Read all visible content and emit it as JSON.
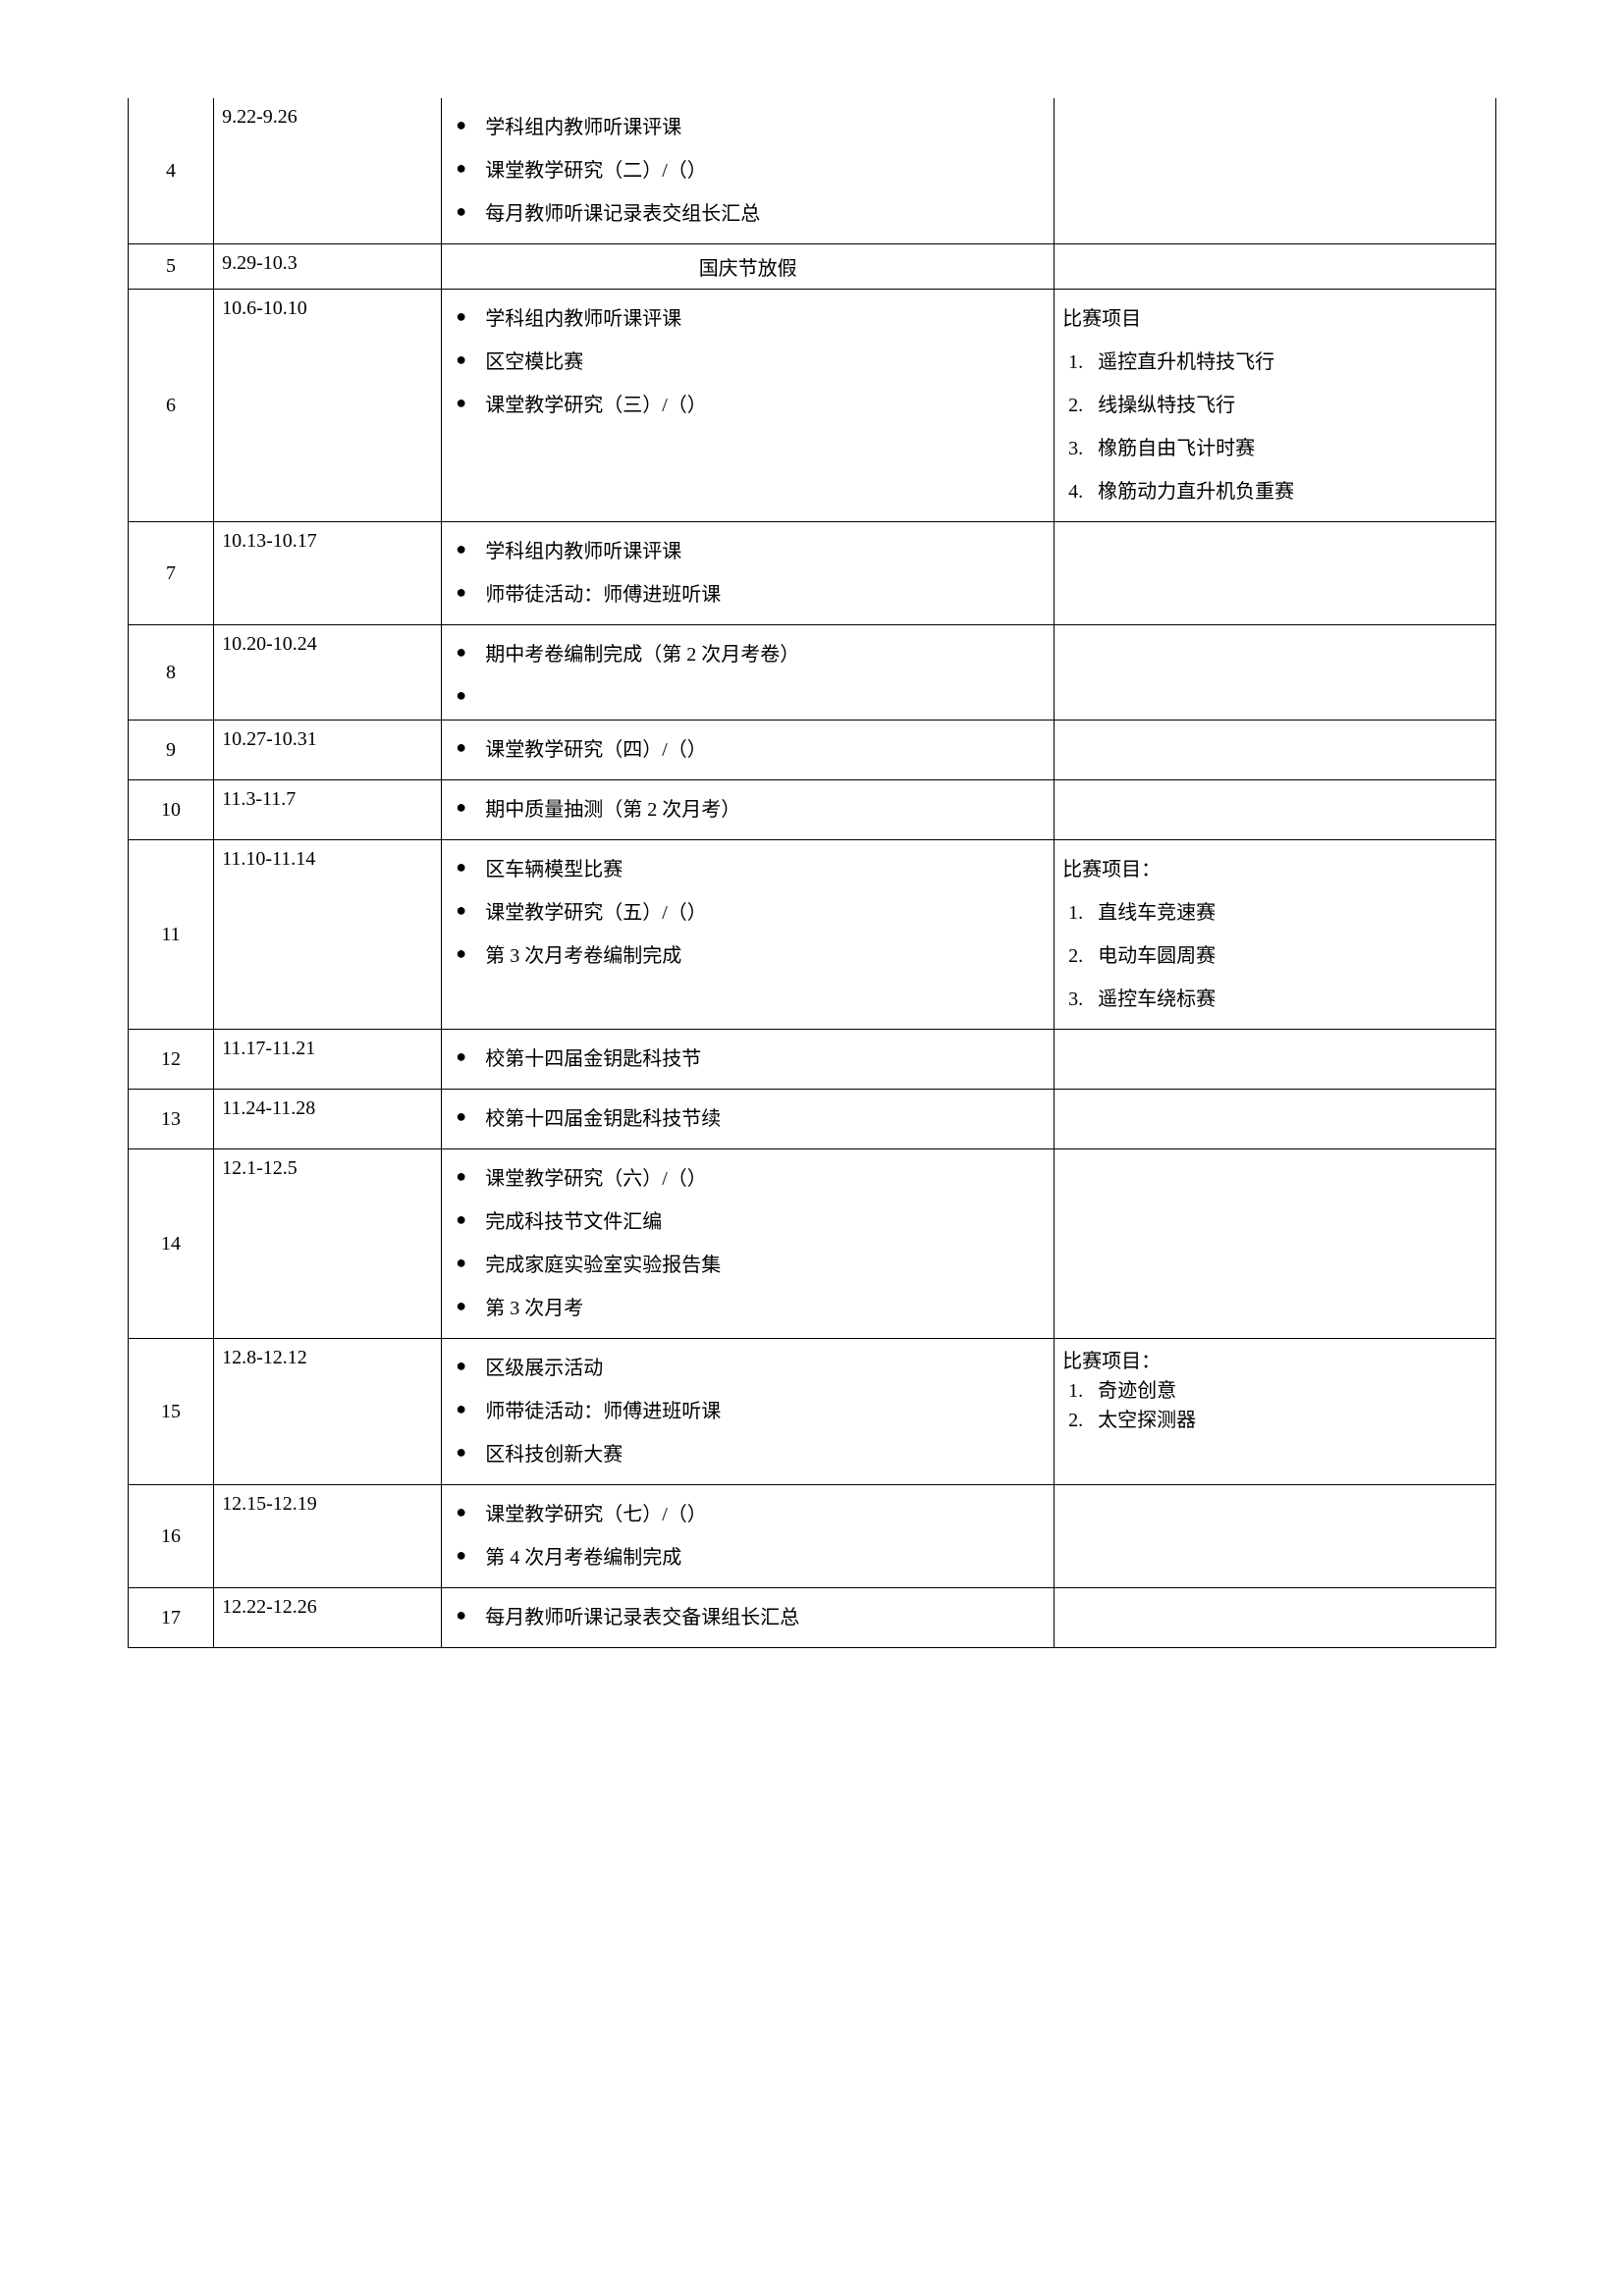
{
  "rows": [
    {
      "week": "4",
      "date": "9.22-9.26",
      "activities": [
        "学科组内教师听课评课",
        "课堂教学研究（二）/（）",
        "每月教师听课记录表交组长汇总"
      ],
      "notes_heading": "",
      "notes_items": []
    },
    {
      "week": "5",
      "date": "9.29-10.3",
      "center_text": "国庆节放假",
      "notes_heading": "",
      "notes_items": []
    },
    {
      "week": "6",
      "date": "10.6-10.10",
      "activities": [
        "学科组内教师听课评课",
        "区空模比赛",
        "课堂教学研究（三）/（）"
      ],
      "notes_heading": "比赛项目",
      "notes_items": [
        "遥控直升机特技飞行",
        "线操纵特技飞行",
        "橡筋自由飞计时赛",
        "橡筋动力直升机负重赛"
      ]
    },
    {
      "week": "7",
      "date": "10.13-10.17",
      "activities": [
        "学科组内教师听课评课",
        "师带徒活动：师傅进班听课"
      ],
      "notes_heading": "",
      "notes_items": []
    },
    {
      "week": "8",
      "date": "10.20-10.24",
      "activities": [
        "期中考卷编制完成（第 2 次月考卷）",
        ""
      ],
      "notes_heading": "",
      "notes_items": []
    },
    {
      "week": "9",
      "date": "10.27-10.31",
      "activities": [
        "课堂教学研究（四）/（）"
      ],
      "notes_heading": "",
      "notes_items": []
    },
    {
      "week": "10",
      "date": "11.3-11.7",
      "activities": [
        "期中质量抽测（第 2 次月考）"
      ],
      "notes_heading": "",
      "notes_items": []
    },
    {
      "week": "11",
      "date": "11.10-11.14",
      "activities": [
        "区车辆模型比赛",
        "课堂教学研究（五）/（）",
        "第 3 次月考卷编制完成"
      ],
      "notes_heading": "比赛项目：",
      "notes_items": [
        "直线车竞速赛",
        "电动车圆周赛",
        "遥控车绕标赛"
      ]
    },
    {
      "week": "12",
      "date": "11.17-11.21",
      "activities": [
        "校第十四届金钥匙科技节"
      ],
      "notes_heading": "",
      "notes_items": []
    },
    {
      "week": "13",
      "date": "11.24-11.28",
      "activities": [
        "校第十四届金钥匙科技节续"
      ],
      "notes_heading": "",
      "notes_items": []
    },
    {
      "week": "14",
      "date": "12.1-12.5",
      "activities": [
        "课堂教学研究（六）/（）",
        "完成科技节文件汇编",
        "完成家庭实验室实验报告集",
        "第 3 次月考"
      ],
      "notes_heading": "",
      "notes_items": []
    },
    {
      "week": "15",
      "date": "12.8-12.12",
      "activities": [
        "区级展示活动",
        "师带徒活动：师傅进班听课",
        "区科技创新大赛"
      ],
      "notes_heading": "比赛项目：",
      "notes_items": [
        "奇迹创意",
        "太空探测器"
      ],
      "notes_compact": true
    },
    {
      "week": "16",
      "date": "12.15-12.19",
      "activities": [
        "课堂教学研究（七）/（）",
        "第 4 次月考卷编制完成"
      ],
      "notes_heading": "",
      "notes_items": []
    },
    {
      "week": "17",
      "date": "12.22-12.26",
      "activities": [
        "每月教师听课记录表交备课组长汇总"
      ],
      "notes_heading": "",
      "notes_items": []
    }
  ]
}
